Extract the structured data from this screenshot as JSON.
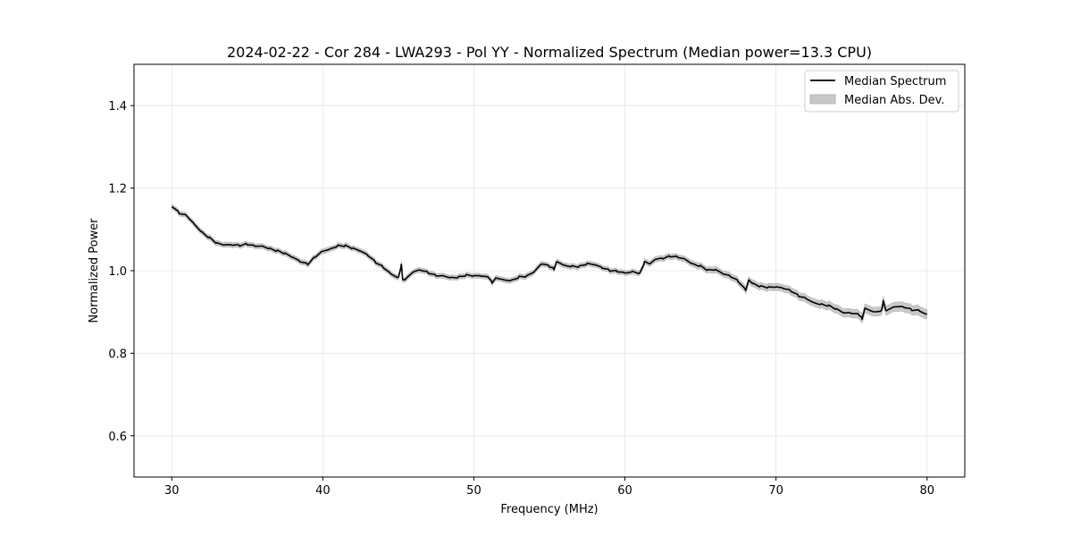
{
  "chart_data": {
    "type": "line",
    "title": "2024-02-22 - Cor 284 - LWA293 - Pol YY - Normalized Spectrum (Median power=13.3 CPU)",
    "xlabel": "Frequency (MHz)",
    "ylabel": "Normalized Power",
    "xlim": [
      27.5,
      82.5
    ],
    "ylim": [
      0.5,
      1.5
    ],
    "xticks": [
      30,
      40,
      50,
      60,
      70,
      80
    ],
    "yticks": [
      0.6,
      0.8,
      1.0,
      1.2,
      1.4
    ],
    "xtick_labels": [
      "30",
      "40",
      "50",
      "60",
      "70",
      "80"
    ],
    "ytick_labels": [
      "0.6",
      "0.8",
      "1.0",
      "1.2",
      "1.4"
    ],
    "grid": true,
    "legend_position": "top-right",
    "legend": [
      "Median Spectrum",
      "Median Abs. Dev."
    ],
    "series": [
      {
        "name": "Median Spectrum",
        "color": "#000000",
        "x": [
          30,
          30.5,
          31,
          31.5,
          32,
          32.5,
          33,
          33.5,
          34,
          34.5,
          35,
          35.5,
          36,
          36.5,
          37,
          37.5,
          38,
          38.5,
          39,
          39.5,
          40,
          40.5,
          41,
          41.5,
          42,
          42.5,
          43,
          43.5,
          44,
          44.5,
          45,
          45.2,
          45.3,
          45.5,
          46,
          46.5,
          47,
          47.5,
          48,
          48.5,
          49,
          49.5,
          50,
          50.5,
          51,
          51.2,
          51.5,
          52,
          52.5,
          53,
          53.5,
          54,
          54.5,
          55,
          55.3,
          55.5,
          56,
          56.5,
          57,
          57.5,
          58,
          58.5,
          59,
          59.5,
          60,
          60.5,
          61,
          61.3,
          61.7,
          62,
          62.5,
          63,
          63.5,
          64,
          64.5,
          65,
          65.5,
          66,
          66.5,
          67,
          67.5,
          68,
          68.2,
          68.5,
          69,
          69.5,
          70,
          70.5,
          71,
          71.5,
          72,
          72.5,
          73,
          73.5,
          74,
          74.5,
          75,
          75.5,
          75.7,
          75.9,
          76.5,
          77,
          77.1,
          77.3,
          77.8,
          78.5,
          79,
          79.5,
          80
        ],
        "y": [
          1.155,
          1.14,
          1.135,
          1.115,
          1.095,
          1.08,
          1.065,
          1.06,
          1.06,
          1.06,
          1.065,
          1.062,
          1.062,
          1.055,
          1.048,
          1.04,
          1.03,
          1.02,
          1.015,
          1.035,
          1.05,
          1.055,
          1.062,
          1.06,
          1.052,
          1.045,
          1.035,
          1.02,
          1.01,
          0.995,
          0.985,
          1.015,
          0.975,
          0.978,
          0.995,
          1.0,
          0.995,
          0.99,
          0.99,
          0.985,
          0.985,
          0.988,
          0.985,
          0.985,
          0.982,
          0.972,
          0.985,
          0.98,
          0.978,
          0.985,
          0.985,
          0.995,
          1.015,
          1.01,
          1.005,
          1.025,
          1.015,
          1.012,
          1.01,
          1.015,
          1.012,
          1.005,
          1.0,
          1.0,
          0.997,
          1.0,
          0.995,
          1.02,
          1.015,
          1.025,
          1.028,
          1.035,
          1.035,
          1.03,
          1.018,
          1.012,
          1.0,
          1.0,
          0.99,
          0.985,
          0.975,
          0.955,
          0.98,
          0.97,
          0.962,
          0.958,
          0.958,
          0.955,
          0.95,
          0.94,
          0.935,
          0.925,
          0.92,
          0.915,
          0.905,
          0.895,
          0.895,
          0.893,
          0.885,
          0.912,
          0.902,
          0.905,
          0.925,
          0.9,
          0.91,
          0.91,
          0.905,
          0.905,
          0.895
        ]
      },
      {
        "name": "Median Abs. Dev.",
        "color": "#c8c8c8",
        "x": [
          30,
          60,
          68,
          80
        ],
        "mad": [
          0.006,
          0.006,
          0.008,
          0.012
        ]
      }
    ]
  }
}
